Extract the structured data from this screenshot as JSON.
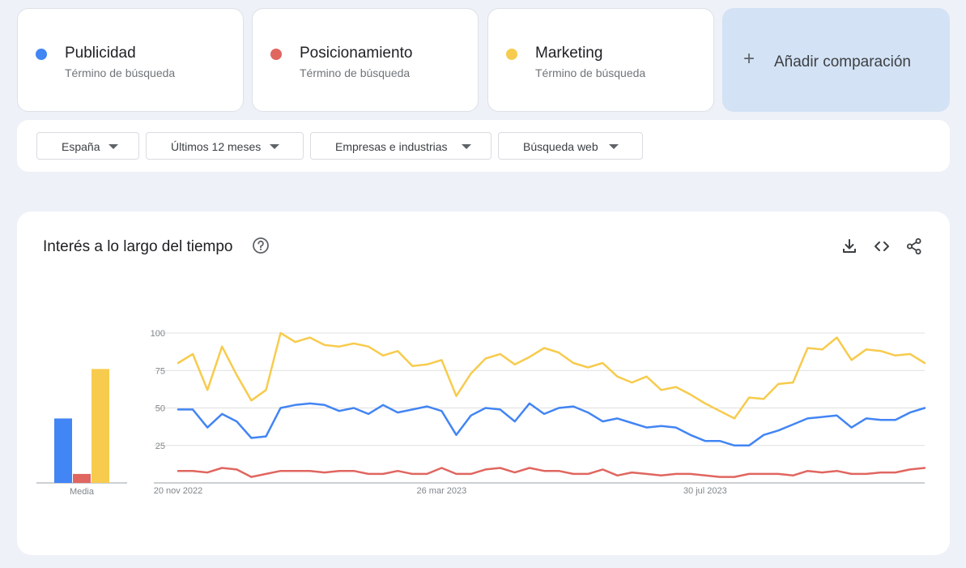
{
  "terms": [
    {
      "name": "Publicidad",
      "subtitle": "Término de búsqueda",
      "color": "#4285f4"
    },
    {
      "name": "Posicionamiento",
      "subtitle": "Término de búsqueda",
      "color": "#e06660"
    },
    {
      "name": "Marketing",
      "subtitle": "Término de búsqueda",
      "color": "#f7cb4d"
    }
  ],
  "add_comparison": {
    "label": "Añadir comparación",
    "icon": "plus-icon"
  },
  "filters": [
    {
      "label": "España"
    },
    {
      "label": "Últimos 12 meses"
    },
    {
      "label": "Empresas e industrias"
    },
    {
      "label": "Búsqueda web"
    }
  ],
  "section": {
    "title": "Interés a lo largo del tiempo",
    "help_icon": "help-circle-icon",
    "tools": [
      "download-icon",
      "embed-code-icon",
      "share-icon"
    ]
  },
  "chart_data": {
    "type": "line",
    "y_ticks": [
      25,
      50,
      75,
      100
    ],
    "ylim": [
      0,
      100
    ],
    "x_tick_labels": [
      "20 nov 2022",
      "26 mar 2023",
      "30 jul 2023"
    ],
    "x_tick_index": [
      0,
      18,
      36
    ],
    "grid": true,
    "average": {
      "label": "Media",
      "values": [
        43,
        6,
        76
      ]
    },
    "series": [
      {
        "name": "Publicidad",
        "color": "#4285f4",
        "values": [
          49,
          49,
          37,
          46,
          41,
          30,
          31,
          50,
          52,
          53,
          52,
          48,
          50,
          46,
          52,
          47,
          49,
          51,
          48,
          32,
          45,
          50,
          49,
          41,
          53,
          46,
          50,
          51,
          47,
          41,
          43,
          40,
          37,
          38,
          37,
          32,
          28,
          28,
          25,
          25,
          32,
          35,
          39,
          43,
          44,
          45,
          37,
          43,
          42,
          42,
          47,
          50
        ]
      },
      {
        "name": "Posicionamiento",
        "color": "#e06660",
        "values": [
          8,
          8,
          7,
          10,
          9,
          4,
          6,
          8,
          8,
          8,
          7,
          8,
          8,
          6,
          6,
          8,
          6,
          6,
          10,
          6,
          6,
          9,
          10,
          7,
          10,
          8,
          8,
          6,
          6,
          9,
          5,
          7,
          6,
          5,
          6,
          6,
          5,
          4,
          4,
          6,
          6,
          6,
          5,
          8,
          7,
          8,
          6,
          6,
          7,
          7,
          9,
          10
        ]
      },
      {
        "name": "Marketing",
        "color": "#f7cb4d",
        "values": [
          80,
          86,
          62,
          91,
          72,
          55,
          62,
          100,
          94,
          97,
          92,
          91,
          93,
          91,
          85,
          88,
          78,
          79,
          82,
          58,
          73,
          83,
          86,
          79,
          84,
          90,
          87,
          80,
          77,
          80,
          71,
          67,
          71,
          62,
          64,
          59,
          53,
          48,
          43,
          57,
          56,
          66,
          67,
          90,
          89,
          97,
          82,
          89,
          88,
          85,
          86,
          80
        ]
      }
    ]
  }
}
